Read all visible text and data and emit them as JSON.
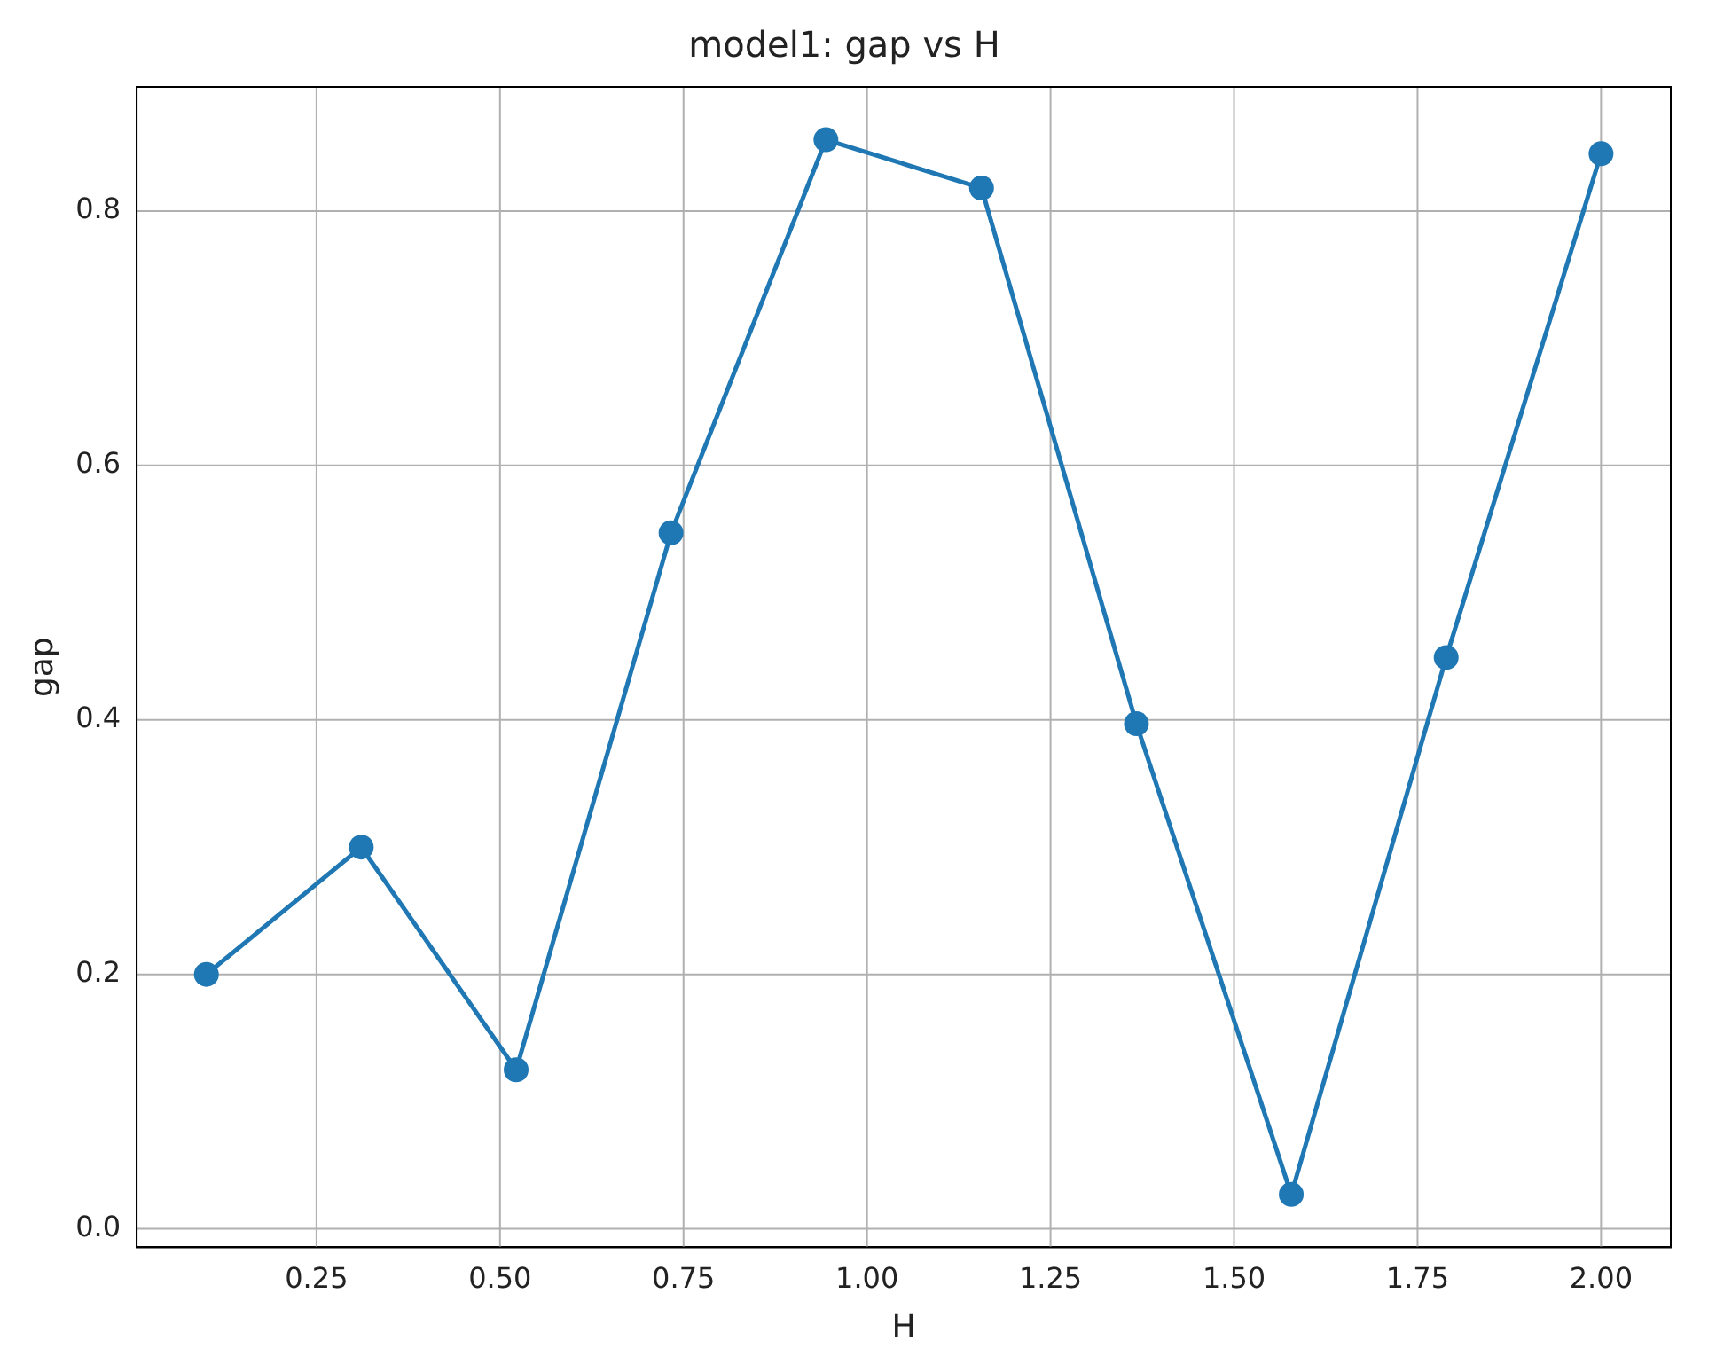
{
  "chart_data": {
    "type": "line",
    "title": "model1: gap vs H",
    "xlabel": "H",
    "ylabel": "gap",
    "x": [
      0.1,
      0.311,
      0.522,
      0.733,
      0.944,
      1.156,
      1.367,
      1.578,
      1.789,
      2.0
    ],
    "series": [
      {
        "color": "#1f77b4",
        "values": [
          0.2,
          0.3,
          0.125,
          0.547,
          0.856,
          0.818,
          0.397,
          0.027,
          0.449,
          0.845
        ]
      }
    ],
    "xlim": [
      0.005,
      2.095
    ],
    "ylim": [
      -0.0145,
      0.8975
    ],
    "xticks": [
      0.25,
      {
        "value": 0.5,
        "label": "0.50"
      },
      0.75,
      {
        "value": 1.0,
        "label": "1.00"
      },
      1.25,
      {
        "value": 1.5,
        "label": "1.50"
      },
      1.75,
      {
        "value": 2.0,
        "label": "2.00"
      }
    ],
    "yticks": [
      {
        "value": 0,
        "label": "0.0"
      },
      0.2,
      0.4,
      0.6,
      0.8
    ],
    "grid": true,
    "legend": false,
    "marker": "circle",
    "line_style": "solid"
  }
}
